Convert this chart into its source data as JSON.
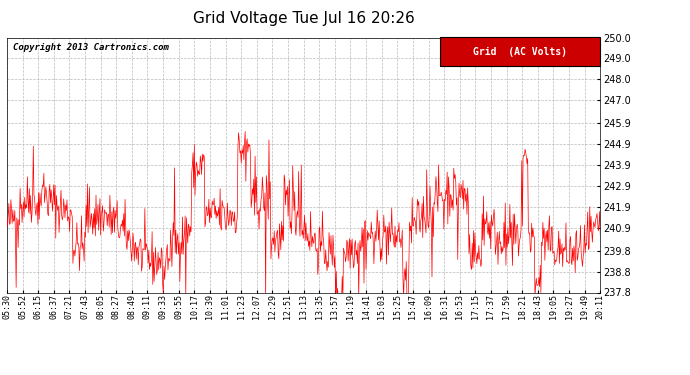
{
  "title": "Grid Voltage Tue Jul 16 20:26",
  "legend_label": "Grid  (AC Volts)",
  "copyright_text": "Copyright 2013 Cartronics.com",
  "line_color": "#ff0000",
  "legend_bg": "#cc0000",
  "legend_text_color": "#ffffff",
  "background_color": "#ffffff",
  "grid_color": "#bbbbbb",
  "ylim": [
    237.8,
    250.0
  ],
  "yticks": [
    237.8,
    238.8,
    239.8,
    240.9,
    241.9,
    242.9,
    243.9,
    244.9,
    245.9,
    247.0,
    248.0,
    249.0,
    250.0
  ],
  "x_labels": [
    "05:30",
    "05:52",
    "06:15",
    "06:37",
    "07:21",
    "07:43",
    "08:05",
    "08:27",
    "08:49",
    "09:11",
    "09:33",
    "09:55",
    "10:17",
    "10:39",
    "11:01",
    "11:23",
    "12:07",
    "12:29",
    "12:51",
    "13:13",
    "13:35",
    "13:57",
    "14:19",
    "14:41",
    "15:03",
    "15:25",
    "15:47",
    "16:09",
    "16:31",
    "16:53",
    "17:15",
    "17:37",
    "17:59",
    "18:21",
    "18:43",
    "19:05",
    "19:27",
    "19:49",
    "20:11"
  ],
  "seed": 42,
  "n_points": 900
}
